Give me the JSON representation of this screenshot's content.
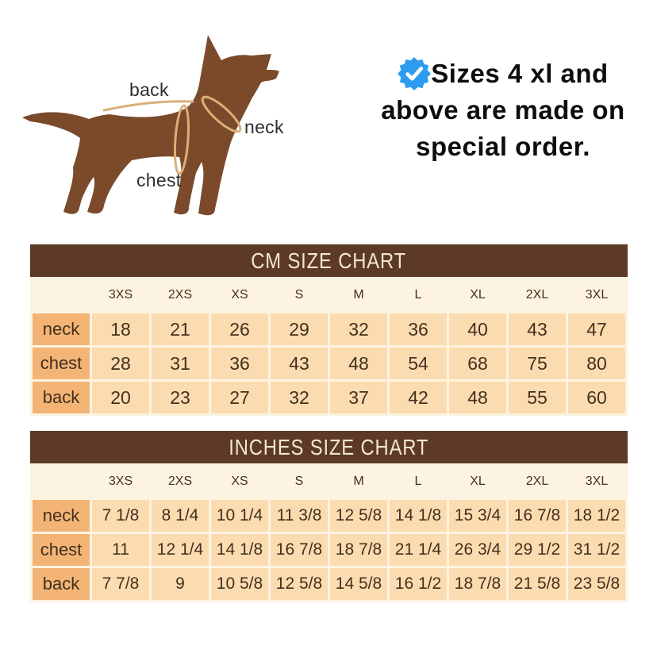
{
  "diagram": {
    "back_label": "back",
    "neck_label": "neck",
    "chest_label": "chest"
  },
  "note": {
    "lines": [
      "Sizes 4 xl and",
      "above are made on",
      "special order."
    ]
  },
  "colors": {
    "title_bar_brown": "#5c3a27",
    "title_text_cream": "#f3e7d0",
    "header_cell_orange": "#f3b475",
    "data_cell_peach": "#fbdcb0",
    "dog_brown": "#7a4a2b",
    "measure_line_tan": "#d9b077",
    "badge_blue": "#2d9cf0"
  },
  "chart_data": [
    {
      "type": "table",
      "title": "CM SIZE CHART",
      "unit": "cm",
      "columns": [
        "",
        "3XS",
        "2XS",
        "XS",
        "S",
        "M",
        "L",
        "XL",
        "2XL",
        "3XL"
      ],
      "rows": [
        {
          "label": "neck",
          "values": [
            "18",
            "21",
            "26",
            "29",
            "32",
            "36",
            "40",
            "43",
            "47"
          ]
        },
        {
          "label": "chest",
          "values": [
            "28",
            "31",
            "36",
            "43",
            "48",
            "54",
            "68",
            "75",
            "80"
          ]
        },
        {
          "label": "back",
          "values": [
            "20",
            "23",
            "27",
            "32",
            "37",
            "42",
            "48",
            "55",
            "60"
          ]
        }
      ]
    },
    {
      "type": "table",
      "title": "INCHES SIZE CHART",
      "unit": "inches",
      "columns": [
        "",
        "3XS",
        "2XS",
        "XS",
        "S",
        "M",
        "L",
        "XL",
        "2XL",
        "3XL"
      ],
      "rows": [
        {
          "label": "neck",
          "values": [
            "7 1/8",
            "8 1/4",
            "10 1/4",
            "11 3/8",
            "12 5/8",
            "14 1/8",
            "15 3/4",
            "16 7/8",
            "18 1/2"
          ]
        },
        {
          "label": "chest",
          "values": [
            "11",
            "12 1/4",
            "14 1/8",
            "16 7/8",
            "18 7/8",
            "21 1/4",
            "26 3/4",
            "29 1/2",
            "31 1/2"
          ]
        },
        {
          "label": "back",
          "values": [
            "7 7/8",
            "9",
            "10 5/8",
            "12 5/8",
            "14 5/8",
            "16 1/2",
            "18 7/8",
            "21 5/8",
            "23 5/8"
          ]
        }
      ]
    }
  ]
}
